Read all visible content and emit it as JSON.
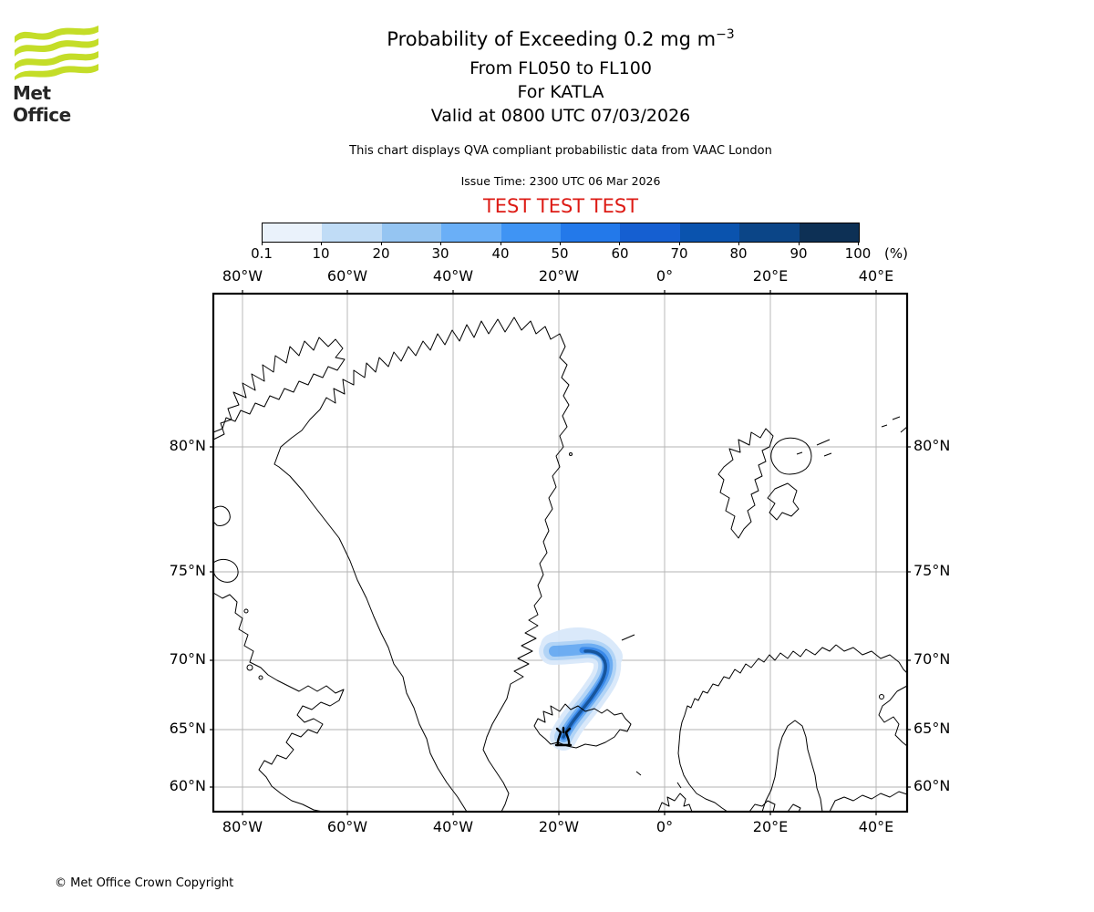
{
  "branding": {
    "logo_text": "Met Office",
    "logo_green": "#c4dd28",
    "copyright": "© Met Office Crown Copyright"
  },
  "header": {
    "title_main": "Probability of Exceeding 0.2 mg m",
    "title_sup": "−3",
    "subtitle_flight_levels": "From FL050 to FL100",
    "subtitle_volcano": "For KATLA",
    "subtitle_valid": "Valid at 0800 UTC 07/03/2026",
    "note": "This chart displays QVA compliant probabilistic data from VAAC London",
    "issue_time": "Issue Time: 2300 UTC 06 Mar 2026",
    "test_banner": {
      "text": "TEST TEST TEST",
      "color": "#dd1b15"
    }
  },
  "colorbar": {
    "unit": "(%)",
    "tick_labels": [
      "0.1",
      "10",
      "20",
      "30",
      "40",
      "50",
      "60",
      "70",
      "80",
      "90",
      "100"
    ],
    "colors": [
      "#eaf2fb",
      "#c0dcf6",
      "#95c5f2",
      "#6aaff7",
      "#3f94f4",
      "#2379ea",
      "#155fd1",
      "#0a53ae",
      "#0b4587",
      "#0d3055"
    ]
  },
  "map": {
    "grid_color": "#b3b3b3",
    "coast_color": "#000000",
    "top_lon_labels": [
      "80°W",
      "60°W",
      "40°W",
      "20°W",
      "0°",
      "20°E",
      "40°E"
    ],
    "bottom_lon_labels": [
      "80°W",
      "60°W",
      "40°W",
      "20°W",
      "0°",
      "20°E",
      "40°E"
    ],
    "left_lat_labels": [
      "80°N",
      "75°N",
      "70°N",
      "65°N",
      "60°N"
    ],
    "right_lat_labels": [
      "80°N",
      "75°N",
      "70°N",
      "65°N",
      "60°N"
    ],
    "volcano": {
      "name": "KATLA",
      "marker_color": "#000000"
    },
    "plume": {
      "description": "Ash probability plume arcing from Katla (Iceland) northeast then hooking west toward the Greenland coast near 70N 20W",
      "halo": "#d9e8fa",
      "light": "#aed2f6",
      "mid": "#66a9f2",
      "bright": "#2e82e8",
      "core": "#0b4c97"
    }
  }
}
